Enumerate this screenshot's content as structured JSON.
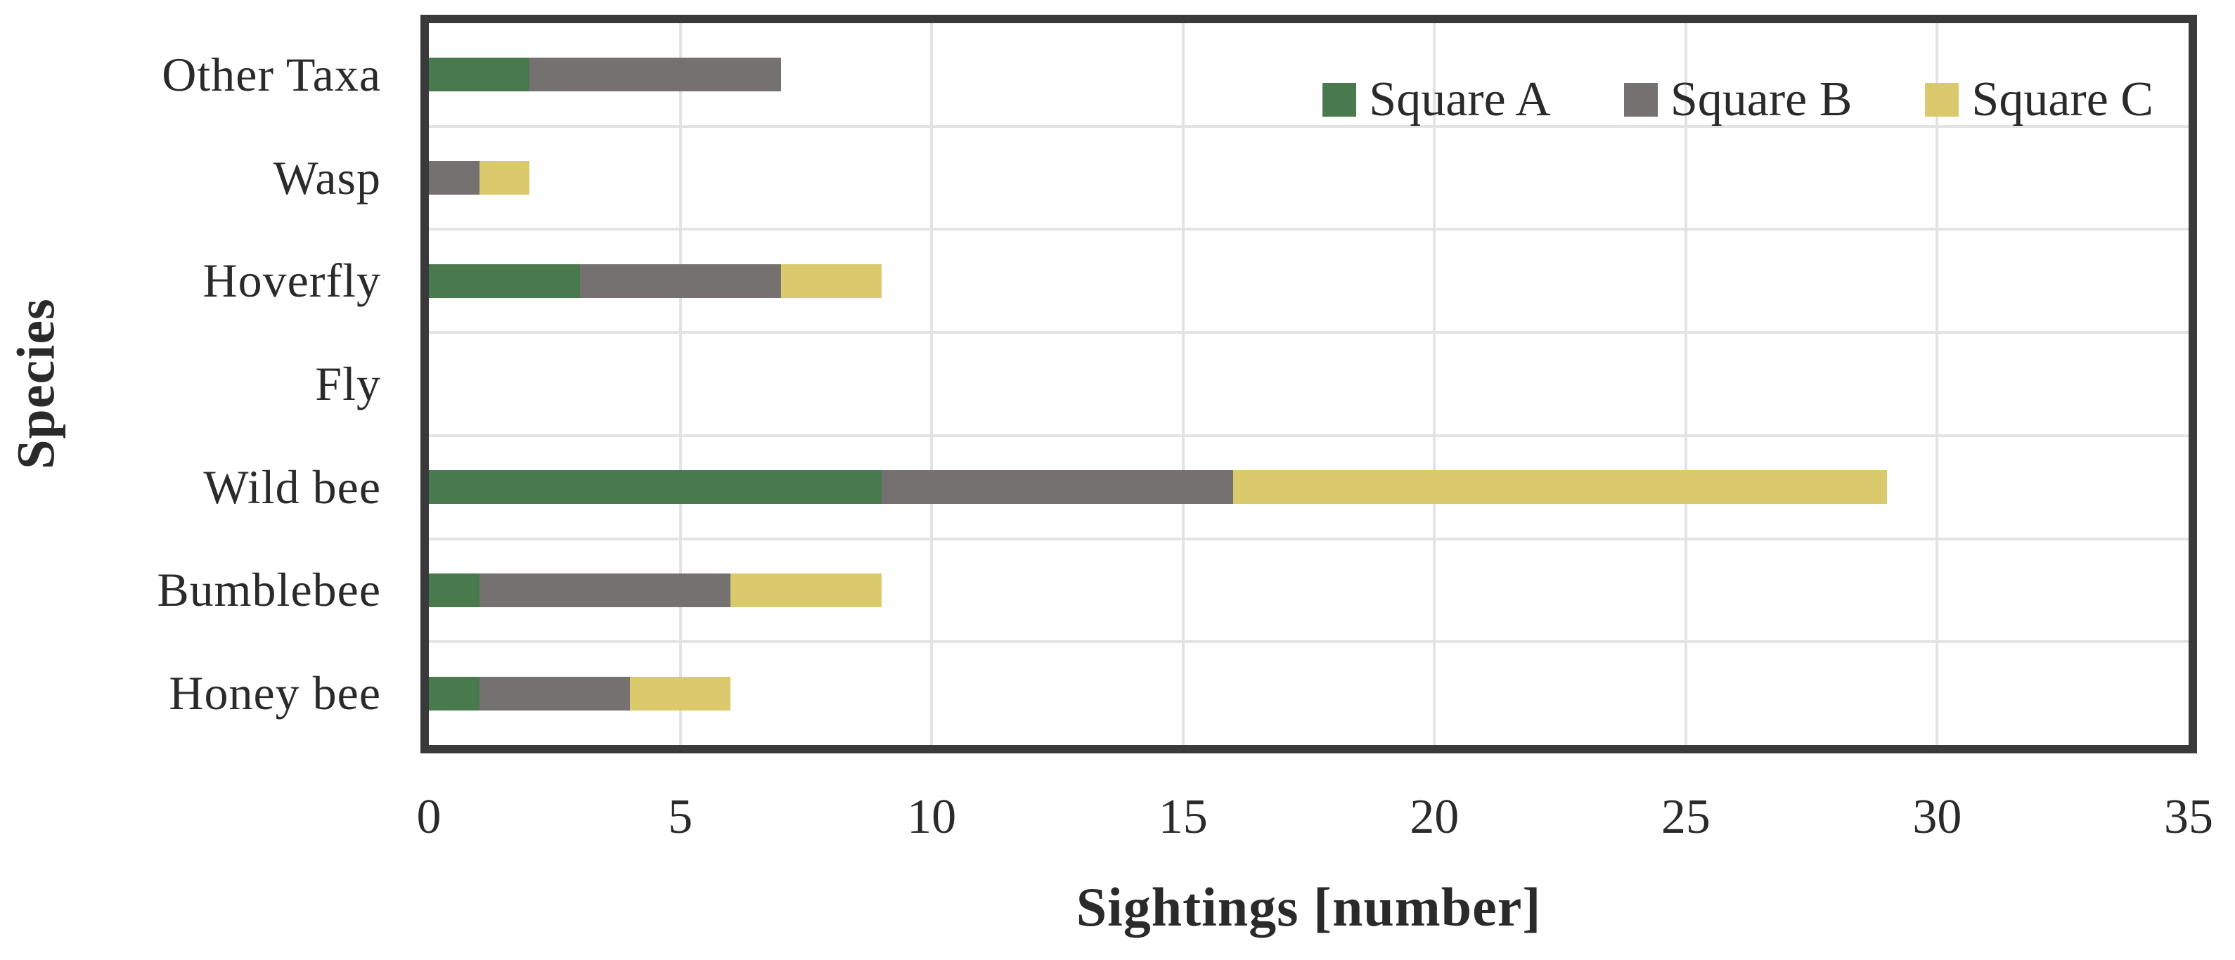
{
  "chart_data": {
    "type": "bar",
    "orientation": "horizontal",
    "stacked": true,
    "title": "",
    "xlabel": "Sightings [number]",
    "ylabel": "Species",
    "xlim": [
      0,
      35
    ],
    "x_ticks": [
      0,
      5,
      10,
      15,
      20,
      25,
      30,
      35
    ],
    "grid": true,
    "legend_position": "top-right-inside",
    "categories_top_to_bottom": [
      "Other Taxa",
      "Wasp",
      "Hoverfly",
      "Fly",
      "Wild bee",
      "Bumblebee",
      "Honey bee"
    ],
    "series": [
      {
        "name": "Square A",
        "color": "#487a4e",
        "values": [
          2,
          0,
          3,
          0,
          9,
          1,
          1
        ]
      },
      {
        "name": "Square B",
        "color": "#767171",
        "values": [
          5,
          1,
          4,
          0,
          7,
          5,
          3
        ]
      },
      {
        "name": "Square C",
        "color": "#dbc96d",
        "values": [
          0,
          1,
          2,
          0,
          13,
          3,
          2
        ]
      }
    ],
    "totals": [
      7,
      2,
      9,
      0,
      29,
      9,
      6
    ],
    "frame_color": "#3a3a3a",
    "gridline_color": "#e3e3e3",
    "text_color": "#2b2a2a",
    "background_color": "#ffffff"
  }
}
